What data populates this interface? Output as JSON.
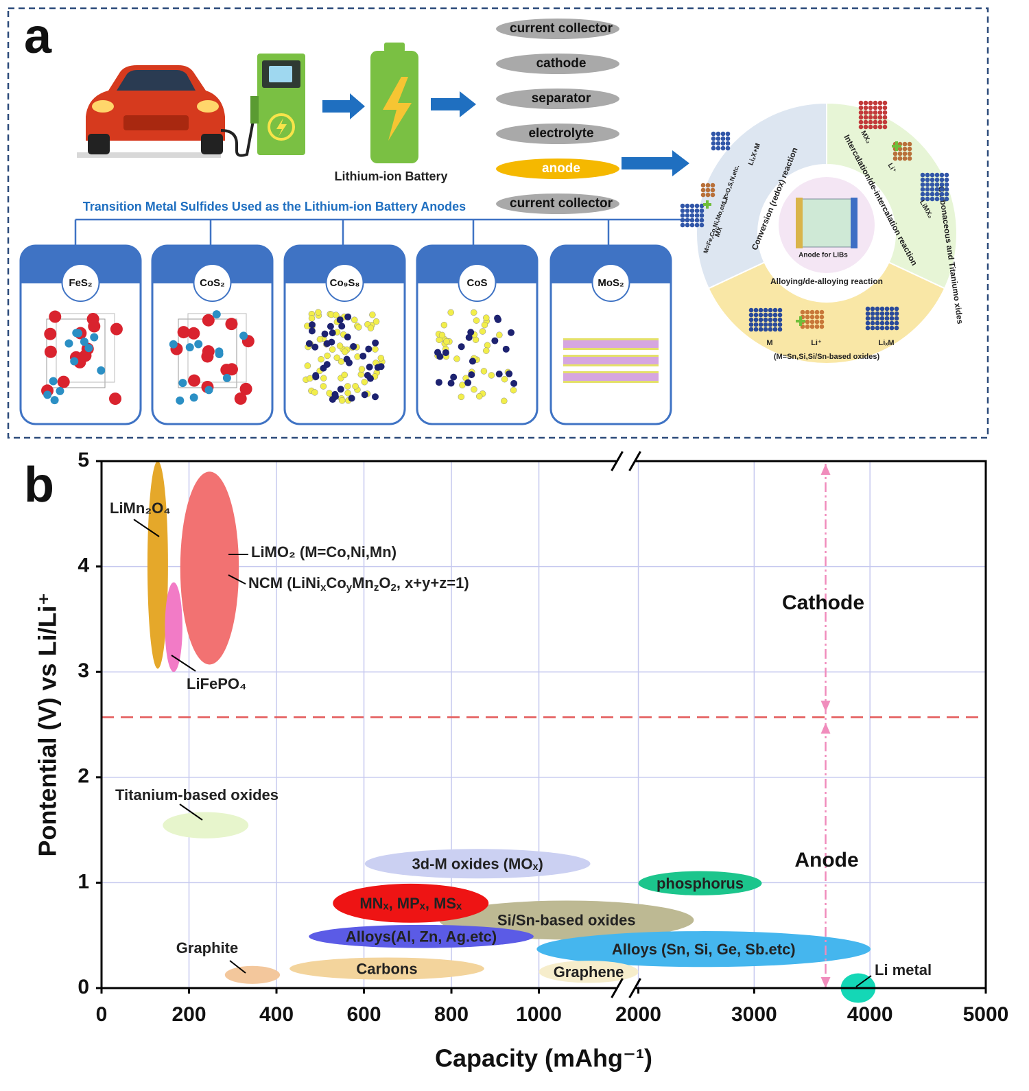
{
  "panel_a": {
    "label": "a",
    "battery_label": "Lithium-ion Battery",
    "layers": [
      {
        "name": "current collector",
        "color": "#a9a9a9"
      },
      {
        "name": "cathode",
        "color": "#a9a9a9"
      },
      {
        "name": "separator",
        "color": "#a9a9a9"
      },
      {
        "name": "electrolyte",
        "color": "#a9a9a9"
      },
      {
        "name": "anode",
        "color": "#f5b800"
      },
      {
        "name": "current collector",
        "color": "#a9a9a9"
      }
    ],
    "section_title": "Transition Metal Sulfides Used as the Lithium-ion Battery Anodes",
    "materials": [
      "FeS₂",
      "CoS₂",
      "Co₉S₈",
      "CoS",
      "MoS₂"
    ],
    "wheel": {
      "center": "Anode for LIBs",
      "conversion": "Conversion (redox) reaction",
      "intercalation": "Intercalation/de-intercalation reaction",
      "alloying": "Alloying/de-alloying reaction",
      "carbon": "Carbonaceous and Titaniumo xides",
      "conversion_labels": [
        "MX",
        "M=Fe,Co,Ni,Mo,etc.X=O,S,N,etc.",
        "LiₓX+M",
        "Li⁺"
      ],
      "intercalation_labels": [
        "MX₂",
        "Li⁺",
        "LiMX₂"
      ],
      "alloying_labels": [
        "M",
        "Li⁺",
        "LiₓM",
        "(M=Sn,Si,Si/Sn-based oxides)"
      ]
    }
  },
  "chart_data": {
    "type": "ellipse",
    "panel_label": "b",
    "x_label": "Capacity (mAhg⁻¹)",
    "y_label": "Pontential (V) vs Li/Li⁺",
    "xlim": [
      0,
      5000
    ],
    "x_break": [
      1000,
      2000
    ],
    "ylim": [
      0,
      5
    ],
    "xticks": [
      0,
      200,
      400,
      600,
      800,
      1000,
      2000,
      3000,
      4000,
      5000
    ],
    "yticks": [
      0,
      1,
      2,
      3,
      4,
      5
    ],
    "grid": true,
    "divider_y": 2.57,
    "marker_x": 3617,
    "annotations": [
      "Cathode",
      "Anode"
    ],
    "series": [
      {
        "name": "LiMn₂O₄",
        "color": "#e5a82a",
        "x": [
          105,
          152
        ],
        "y": [
          3.03,
          5.0
        ]
      },
      {
        "name": "LiFePO₄",
        "color": "#f27bc6",
        "x": [
          145,
          185
        ],
        "y": [
          3.0,
          3.85
        ]
      },
      {
        "name": "LiMO₂ (M=Co,Ni,Mn)",
        "name2": [
          "NCM (LiNi",
          {
            "sub": "x"
          },
          "Co",
          {
            "sub": "y"
          },
          "Mn",
          {
            "sub": "z"
          },
          "O",
          {
            "sub": "2"
          },
          ", x+y+z=1)"
        ],
        "color": "#f27272",
        "x": [
          180,
          314
        ],
        "y": [
          3.07,
          4.9
        ]
      },
      {
        "name": "Titanium-based oxides",
        "color": "#e7f5cc",
        "x": [
          140,
          336
        ],
        "y": [
          1.42,
          1.67
        ]
      },
      {
        "name": "3d-M oxides (MOₓ)",
        "color": "#cbd0f2",
        "x": [
          602,
          1517
        ],
        "y": [
          1.04,
          1.32
        ]
      },
      {
        "name": "Si/Sn-based oxides",
        "color": "#bdb993",
        "x": [
          772,
          2479
        ],
        "y": [
          0.46,
          0.83
        ]
      },
      {
        "name": "MNₓ, MPₓ, MSₓ",
        "color": "#ee1414",
        "x": [
          529,
          885
        ],
        "y": [
          0.62,
          0.99
        ]
      },
      {
        "name": "Alloys(Al, Zn, Ag.etc)",
        "color": "#5b5be6",
        "x": [
          474,
          988
        ],
        "y": [
          0.38,
          0.6
        ]
      },
      {
        "name": "Alloys (Sn, Si, Ge, Sb.etc)",
        "color": "#45b6ee",
        "x": [
          995,
          4006
        ],
        "y": [
          0.2,
          0.54
        ]
      },
      {
        "name": "phosphorus",
        "color": "#1cc58c",
        "x": [
          2000,
          3066
        ],
        "y": [
          0.88,
          1.11
        ]
      },
      {
        "name": "Carbons",
        "color": "#f3d49c",
        "x": [
          430,
          875
        ],
        "y": [
          0.08,
          0.29
        ]
      },
      {
        "name": "Graphene",
        "color": "#f6edcb",
        "x": [
          1000,
          2000
        ],
        "y": [
          0.05,
          0.26
        ]
      },
      {
        "name": "Graphite",
        "color": "#f3c79c",
        "x": [
          282,
          408
        ],
        "y": [
          0.04,
          0.21
        ]
      },
      {
        "name": "Li metal",
        "color": "#14d7b6",
        "x": [
          3748,
          4048
        ],
        "y": [
          -0.14,
          0.14
        ]
      }
    ]
  }
}
